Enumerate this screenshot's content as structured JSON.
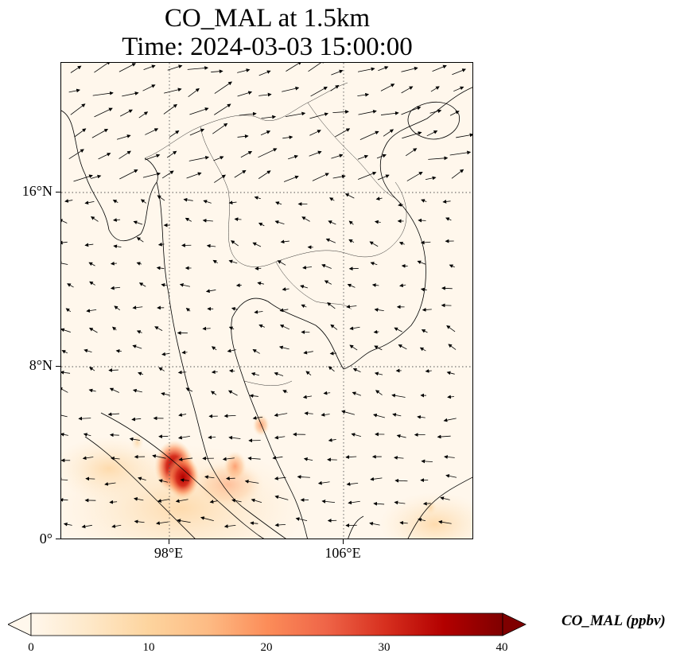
{
  "title_line1": "CO_MAL at 1.5km",
  "title_line2": "Time: 2024-03-03 15:00:00",
  "lat_labels": [
    "16°N",
    "8°N",
    "0°"
  ],
  "lon_labels": [
    "98°E",
    "106°E"
  ],
  "colorbar": {
    "label": "CO_MAL (ppbv)",
    "ticks": [
      "0",
      "10",
      "20",
      "30",
      "40"
    ],
    "min": 0,
    "max": 40,
    "colormap": "OrRd",
    "extend": "both",
    "colors": [
      "#fff7ec",
      "#fee8c8",
      "#fdd49e",
      "#fdbb84",
      "#fc8d59",
      "#ef6548",
      "#d7301f",
      "#b30000",
      "#7f0000"
    ]
  },
  "map": {
    "lon_range": [
      93,
      112
    ],
    "lat_range": [
      0,
      22
    ],
    "gridlines": "dotted",
    "features": [
      "coastlines",
      "country borders",
      "wind vectors"
    ],
    "co_hotspots": [
      {
        "lon": 98.2,
        "lat": 3.4,
        "value": 30
      },
      {
        "lon": 98.6,
        "lat": 2.9,
        "value": 24
      },
      {
        "lon": 101.0,
        "lat": 3.4,
        "value": 15
      },
      {
        "lon": 102.2,
        "lat": 5.3,
        "value": 9
      },
      {
        "lon": 96.5,
        "lat": 4.5,
        "value": 5
      },
      {
        "lon": 110.0,
        "lat": 1.5,
        "value": 5
      }
    ]
  }
}
